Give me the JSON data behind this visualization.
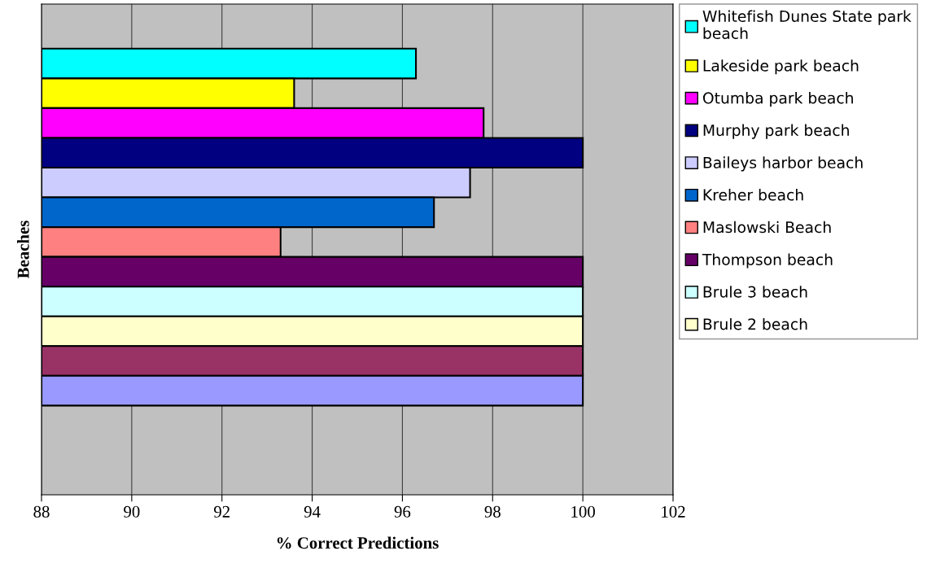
{
  "chart_data": {
    "type": "bar",
    "orientation": "horizontal",
    "categories": [
      null
    ],
    "xlabel": "% Correct Predictions",
    "ylabel": "Beaches",
    "xlim": [
      88,
      102
    ],
    "xticks": [
      88,
      90,
      92,
      94,
      96,
      98,
      100,
      102
    ],
    "grid": "x",
    "legend": "right",
    "tick_labels": "x",
    "series": [
      {
        "name": "Whitefish Dunes State park beach",
        "color": "#00ffff",
        "values": [
          96.3
        ]
      },
      {
        "name": "Lakeside park beach",
        "color": "#ffff00",
        "values": [
          93.6
        ]
      },
      {
        "name": "Otumba park beach",
        "color": "#ff00ff",
        "values": [
          97.8
        ]
      },
      {
        "name": "Murphy park beach",
        "color": "#000080",
        "values": [
          100
        ]
      },
      {
        "name": "Baileys harbor beach",
        "color": "#ccccff",
        "values": [
          97.5
        ]
      },
      {
        "name": "Kreher beach",
        "color": "#0066cc",
        "values": [
          96.7
        ]
      },
      {
        "name": "Maslowski Beach",
        "color": "#ff8080",
        "values": [
          93.3
        ]
      },
      {
        "name": "Thompson beach",
        "color": "#660066",
        "values": [
          100
        ]
      },
      {
        "name": "Brule 3 beach",
        "color": "#ccffff",
        "values": [
          100
        ]
      },
      {
        "name": "Brule 2 beach",
        "color": "#ffffcc",
        "values": [
          100
        ]
      },
      {
        "color": "#993366",
        "values": [
          100
        ]
      },
      {
        "color": "#9999ff",
        "values": [
          100
        ]
      }
    ]
  }
}
